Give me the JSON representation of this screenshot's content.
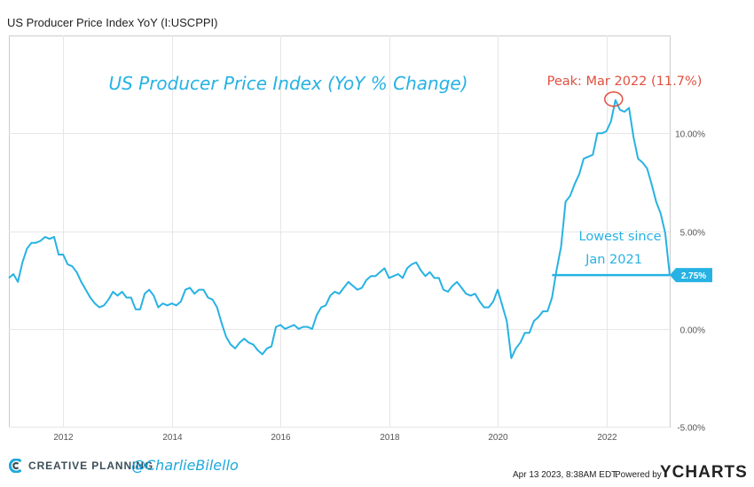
{
  "header": {
    "title": "US Producer Price Index YoY (I:USCPPI)"
  },
  "chart_data": {
    "type": "line",
    "title": "US Producer Price Index (YoY % Change)",
    "xlabel": "",
    "ylabel": "",
    "xlim": [
      "2011-01",
      "2023-03"
    ],
    "ylim": [
      -5,
      15
    ],
    "y_ticks": [
      {
        "value": 10,
        "label": "10.00%"
      },
      {
        "value": 5,
        "label": "5.00%"
      },
      {
        "value": 0,
        "label": "0.00%"
      },
      {
        "value": -5,
        "label": "-5.00%"
      }
    ],
    "x_ticks": [
      {
        "value": "2012-01",
        "label": "2012"
      },
      {
        "value": "2014-01",
        "label": "2014"
      },
      {
        "value": "2016-01",
        "label": "2016"
      },
      {
        "value": "2018-01",
        "label": "2018"
      },
      {
        "value": "2020-01",
        "label": "2020"
      },
      {
        "value": "2022-01",
        "label": "2022"
      }
    ],
    "grid": true,
    "color": "#27b2e3",
    "series": [
      {
        "x": [
          "2011-01",
          "2011-02",
          "2011-03",
          "2011-04",
          "2011-05",
          "2011-06",
          "2011-07",
          "2011-08",
          "2011-09",
          "2011-10",
          "2011-11",
          "2011-12",
          "2012-01",
          "2012-02",
          "2012-03",
          "2012-04",
          "2012-05",
          "2012-06",
          "2012-07",
          "2012-08",
          "2012-09",
          "2012-10",
          "2012-11",
          "2012-12",
          "2013-01",
          "2013-02",
          "2013-03",
          "2013-04",
          "2013-05",
          "2013-06",
          "2013-07",
          "2013-08",
          "2013-09",
          "2013-10",
          "2013-11",
          "2013-12",
          "2014-01",
          "2014-02",
          "2014-03",
          "2014-04",
          "2014-05",
          "2014-06",
          "2014-07",
          "2014-08",
          "2014-09",
          "2014-10",
          "2014-11",
          "2014-12",
          "2015-01",
          "2015-02",
          "2015-03",
          "2015-04",
          "2015-05",
          "2015-06",
          "2015-07",
          "2015-08",
          "2015-09",
          "2015-10",
          "2015-11",
          "2015-12",
          "2016-01",
          "2016-02",
          "2016-03",
          "2016-04",
          "2016-05",
          "2016-06",
          "2016-07",
          "2016-08",
          "2016-09",
          "2016-10",
          "2016-11",
          "2016-12",
          "2017-01",
          "2017-02",
          "2017-03",
          "2017-04",
          "2017-05",
          "2017-06",
          "2017-07",
          "2017-08",
          "2017-09",
          "2017-10",
          "2017-11",
          "2017-12",
          "2018-01",
          "2018-02",
          "2018-03",
          "2018-04",
          "2018-05",
          "2018-06",
          "2018-07",
          "2018-08",
          "2018-09",
          "2018-10",
          "2018-11",
          "2018-12",
          "2019-01",
          "2019-02",
          "2019-03",
          "2019-04",
          "2019-05",
          "2019-06",
          "2019-07",
          "2019-08",
          "2019-09",
          "2019-10",
          "2019-11",
          "2019-12",
          "2020-01",
          "2020-02",
          "2020-03",
          "2020-04",
          "2020-05",
          "2020-06",
          "2020-07",
          "2020-08",
          "2020-09",
          "2020-10",
          "2020-11",
          "2020-12",
          "2021-01",
          "2021-02",
          "2021-03",
          "2021-04",
          "2021-05",
          "2021-06",
          "2021-07",
          "2021-08",
          "2021-09",
          "2021-10",
          "2021-11",
          "2021-12",
          "2022-01",
          "2022-02",
          "2022-03",
          "2022-04",
          "2022-05",
          "2022-06",
          "2022-07",
          "2022-08",
          "2022-09",
          "2022-10",
          "2022-11",
          "2022-12",
          "2023-01",
          "2023-02",
          "2023-03"
        ],
        "values": [
          2.6,
          2.8,
          2.4,
          3.4,
          4.1,
          4.4,
          4.4,
          4.5,
          4.7,
          4.6,
          4.7,
          3.8,
          3.8,
          3.3,
          3.2,
          2.9,
          2.4,
          2.0,
          1.6,
          1.3,
          1.1,
          1.2,
          1.5,
          1.9,
          1.7,
          1.9,
          1.6,
          1.6,
          1.0,
          1.0,
          1.8,
          2.0,
          1.7,
          1.1,
          1.3,
          1.2,
          1.3,
          1.2,
          1.4,
          2.0,
          2.1,
          1.8,
          2.0,
          2.0,
          1.6,
          1.5,
          1.1,
          0.3,
          -0.4,
          -0.8,
          -1.0,
          -0.7,
          -0.5,
          -0.7,
          -0.8,
          -1.1,
          -1.3,
          -1.0,
          -0.9,
          0.1,
          0.2,
          0.0,
          0.1,
          0.2,
          0.0,
          0.1,
          0.1,
          0.0,
          0.7,
          1.1,
          1.2,
          1.7,
          1.9,
          1.8,
          2.1,
          2.4,
          2.2,
          2.0,
          2.1,
          2.5,
          2.7,
          2.7,
          2.9,
          3.1,
          2.6,
          2.7,
          2.8,
          2.6,
          3.1,
          3.3,
          3.4,
          3.0,
          2.7,
          2.9,
          2.6,
          2.6,
          2.0,
          1.9,
          2.2,
          2.4,
          2.1,
          1.8,
          1.7,
          1.8,
          1.4,
          1.1,
          1.1,
          1.4,
          2.0,
          1.2,
          0.4,
          -1.5,
          -1.0,
          -0.7,
          -0.2,
          -0.2,
          0.4,
          0.6,
          0.9,
          0.9,
          1.6,
          3.0,
          4.2,
          6.5,
          6.8,
          7.4,
          7.9,
          8.7,
          8.8,
          8.9,
          10.0,
          10.0,
          10.1,
          10.6,
          11.7,
          11.2,
          11.1,
          11.3,
          9.8,
          8.7,
          8.5,
          8.2,
          7.4,
          6.5,
          5.9,
          4.9,
          2.75
        ]
      }
    ],
    "last_value_label": "2.75%",
    "peak": {
      "label": "Peak: Mar 2022 (11.7%)",
      "x": "2022-03",
      "y": 11.7
    },
    "reference": {
      "label_line1": "Lowest since",
      "label_line2": "Jan 2021",
      "y": 2.75,
      "from_x": "2021-01"
    }
  },
  "footer": {
    "brand": "CREATIVE PLANNING",
    "handle": "@CharlieBilello",
    "timestamp": "Apr 13 2023, 8:38AM EDT.",
    "powered_by": "Powered by",
    "logo_text": "YCHARTS"
  }
}
